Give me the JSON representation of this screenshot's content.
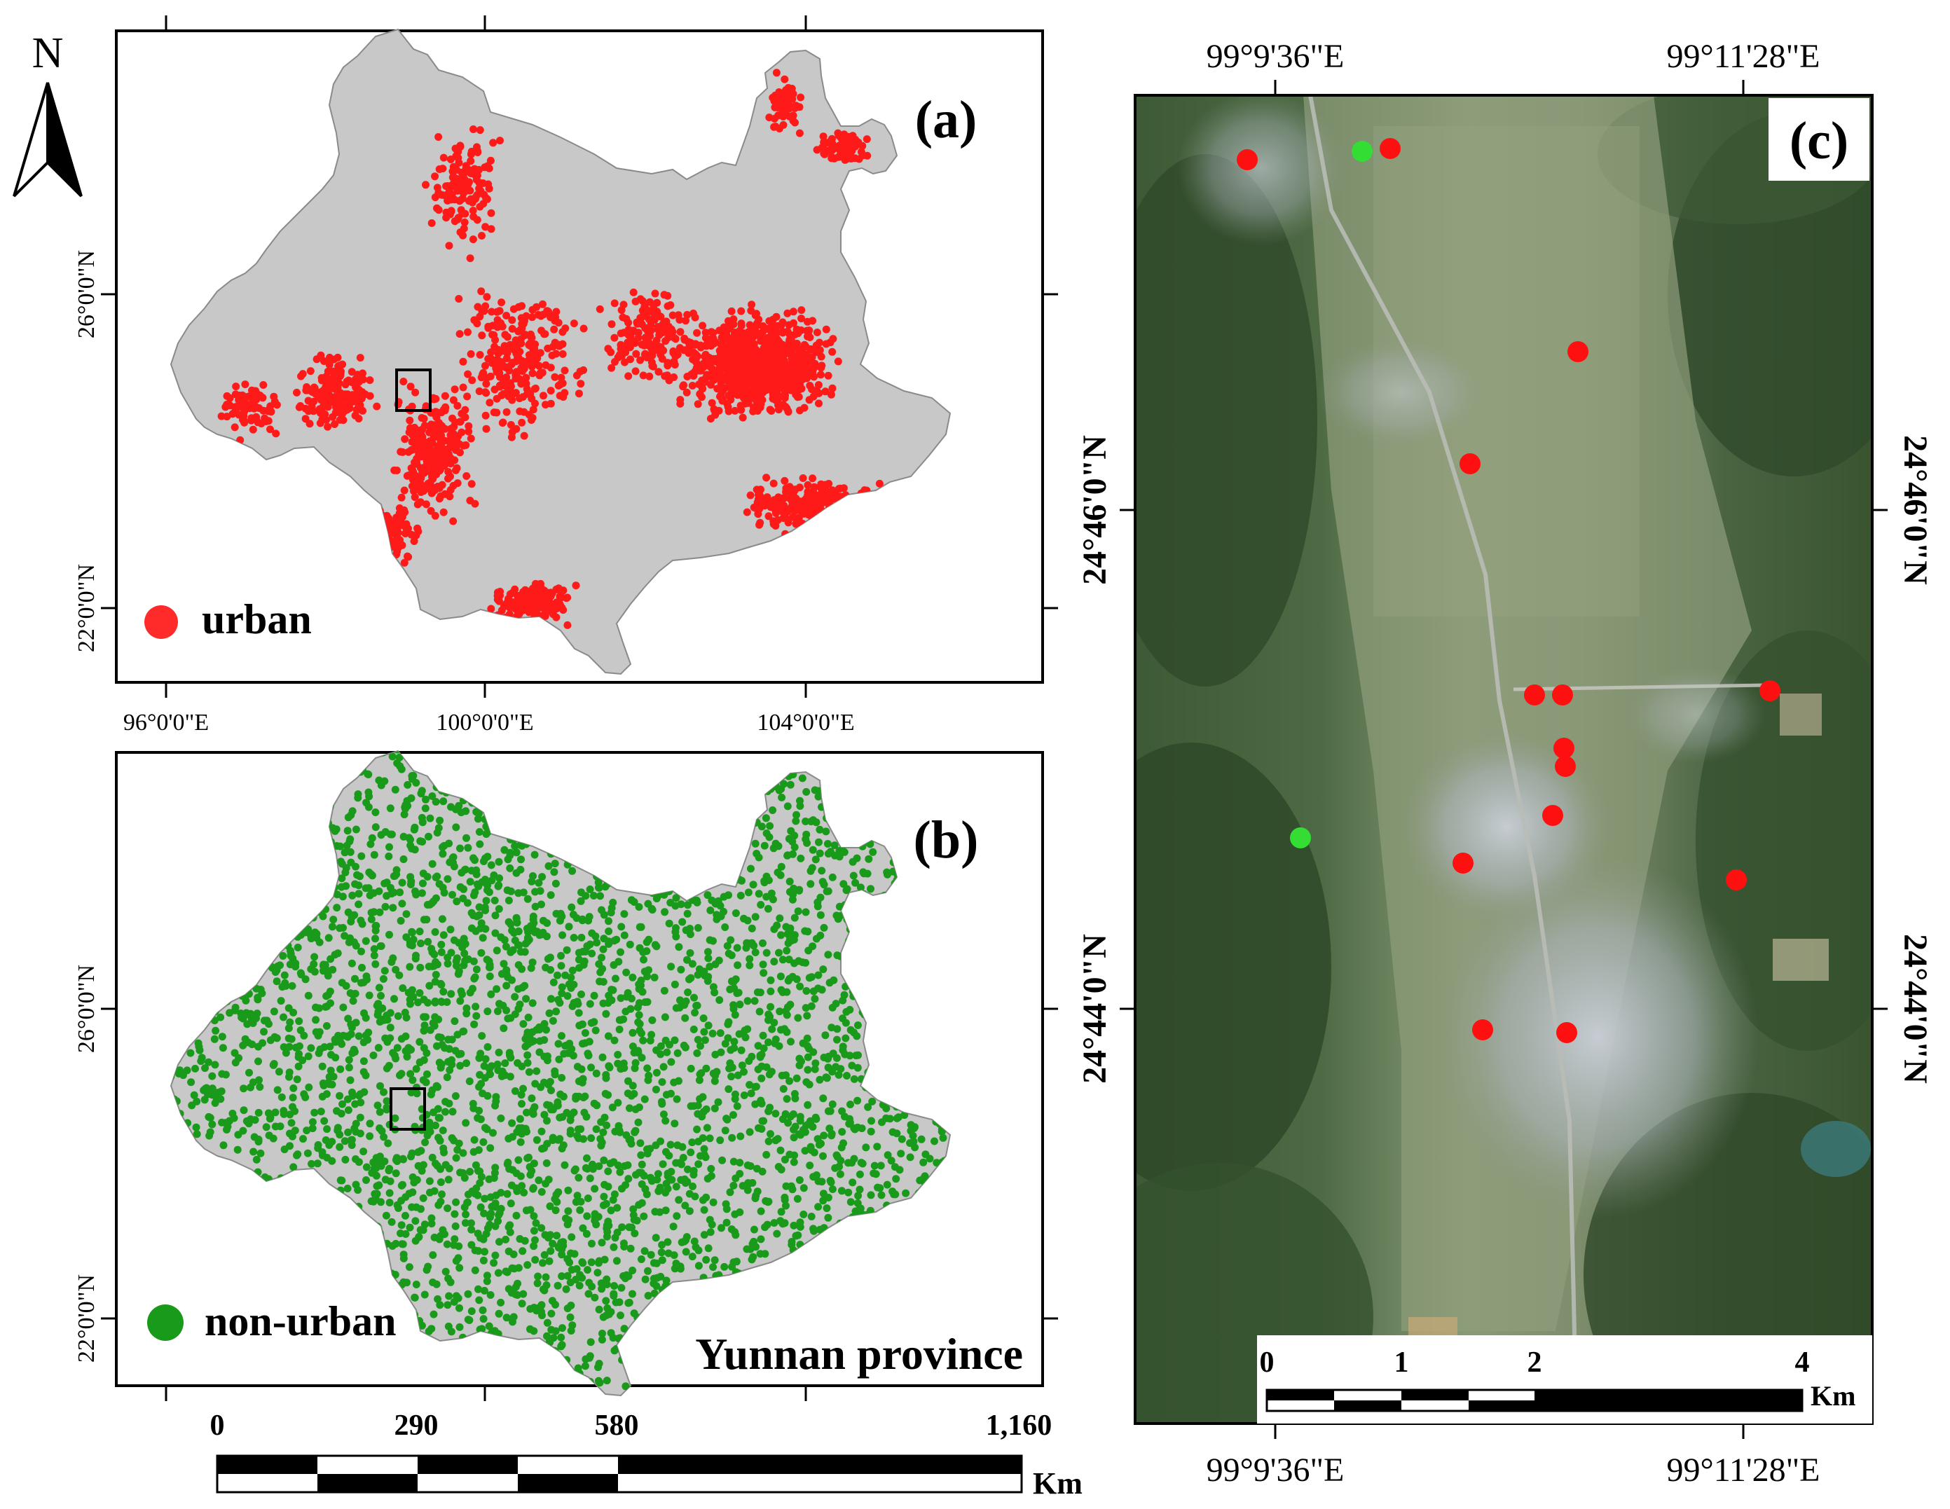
{
  "north_arrow": {
    "letter": "N"
  },
  "panel_a": {
    "tag": "(a)",
    "legend_label": "urban",
    "lat_labels": [
      "26°0'0\"N",
      "22°0'0\"N"
    ],
    "lon_labels": [
      "96°0'0\"E",
      "100°0'0\"E",
      "104°0'0\"E"
    ],
    "point_color": "#ff1a1a"
  },
  "panel_b": {
    "tag": "(b)",
    "legend_label": "non-urban",
    "province_label": "Yunnan province",
    "lat_labels": [
      "26°0'0\"N",
      "22°0'0\"N"
    ],
    "point_color": "#1a9a1a",
    "scale_labels": [
      "0",
      "290",
      "580",
      "1,160"
    ],
    "scale_unit": "Km"
  },
  "panel_c": {
    "tag": "(c)",
    "lon_labels": [
      "99°9'36\"E",
      "99°11'28\"E"
    ],
    "lat_labels": [
      "24°46'0\"N",
      "24°44'0\"N"
    ],
    "scale_labels": [
      "0",
      "1",
      "2",
      "4"
    ],
    "scale_unit": "Km",
    "urban_color": "#ff1010",
    "non_urban_color": "#33dd33"
  },
  "colors": {
    "province_fill": "#c8c8c8",
    "province_stroke": "#8a8a8a"
  }
}
